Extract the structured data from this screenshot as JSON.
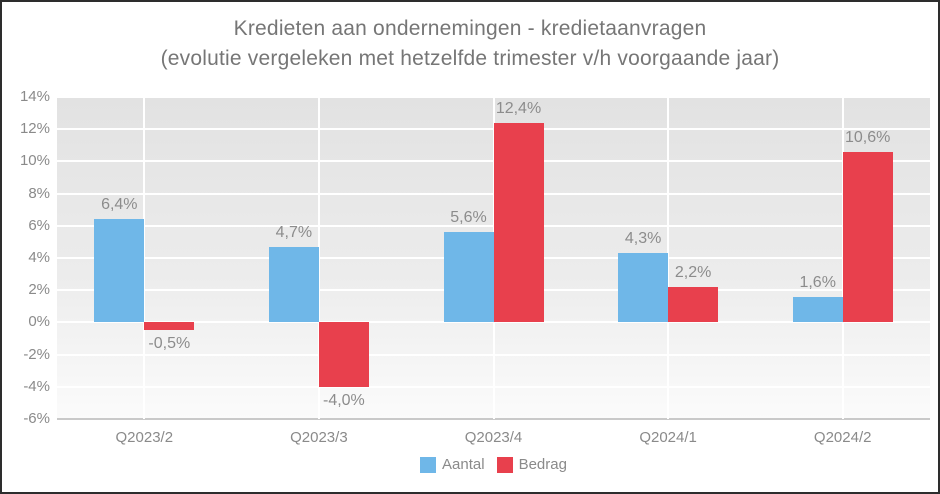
{
  "title": {
    "line1": "Kredieten aan ondernemingen - kredietaanvragen",
    "line2": "(evolutie vergeleken met hetzelfde trimester v/h voorgaande jaar)"
  },
  "chart_data": {
    "type": "bar",
    "title": "Kredieten aan ondernemingen - kredietaanvragen (evolutie vergeleken met hetzelfde trimester v/h voorgaande jaar)",
    "categories": [
      "Q2023/2",
      "Q2023/3",
      "Q2023/4",
      "Q2024/1",
      "Q2024/2"
    ],
    "series": [
      {
        "name": "Aantal",
        "color": "#6fb7e8",
        "values": [
          6.4,
          4.7,
          5.6,
          4.3,
          1.6
        ],
        "labels": [
          "6,4%",
          "4,7%",
          "5,6%",
          "4,3%",
          "1,6%"
        ]
      },
      {
        "name": "Bedrag",
        "color": "#e8404d",
        "values": [
          -0.5,
          -4.0,
          12.4,
          2.2,
          10.6
        ],
        "labels": [
          "-0,5%",
          "-4,0%",
          "12,4%",
          "2,2%",
          "10,6%"
        ]
      }
    ],
    "ylim": [
      -6,
      14
    ],
    "ytick_step": 2,
    "ytick_labels": [
      "14%",
      "12%",
      "10%",
      "8%",
      "6%",
      "4%",
      "2%",
      "0%",
      "-2%",
      "-4%",
      "-6%"
    ],
    "grid": true,
    "legend_position": "bottom"
  },
  "colors": {
    "title_text": "#767676",
    "axis_text": "#8a8a8a",
    "value_label_text": "#8c8c8c",
    "plot_bg_top": "#e2e2e2",
    "plot_bg_bottom": "#fbfbfb",
    "gridline": "#ffffff",
    "axis_line": "#c9c9c9",
    "frame_border": "#2d2d2d"
  }
}
